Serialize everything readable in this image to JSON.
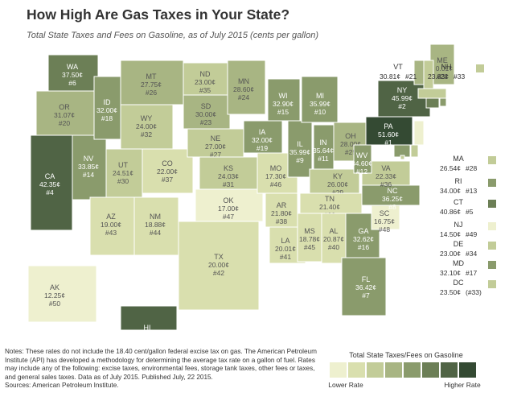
{
  "title": "How High Are Gas Taxes in Your State?",
  "subtitle": "Total State Taxes and Fees on Gasoline, as of July 2015 (cents per gallon)",
  "states": [
    {
      "abbr": "WA",
      "tax": 37.5,
      "tax_label": "37.50¢",
      "rank": "#6"
    },
    {
      "abbr": "OR",
      "tax": 31.07,
      "tax_label": "31.07¢",
      "rank": "#20"
    },
    {
      "abbr": "CA",
      "tax": 42.35,
      "tax_label": "42.35¢",
      "rank": "#4"
    },
    {
      "abbr": "NV",
      "tax": 33.85,
      "tax_label": "33.85¢",
      "rank": "#14"
    },
    {
      "abbr": "ID",
      "tax": 32.0,
      "tax_label": "32.00¢",
      "rank": "#18"
    },
    {
      "abbr": "MT",
      "tax": 27.75,
      "tax_label": "27.75¢",
      "rank": "#26"
    },
    {
      "abbr": "WY",
      "tax": 24.0,
      "tax_label": "24.00¢",
      "rank": "#32"
    },
    {
      "abbr": "UT",
      "tax": 24.51,
      "tax_label": "24.51¢",
      "rank": "#30"
    },
    {
      "abbr": "AZ",
      "tax": 19.0,
      "tax_label": "19.00¢",
      "rank": "#43"
    },
    {
      "abbr": "CO",
      "tax": 22.0,
      "tax_label": "22.00¢",
      "rank": "#37"
    },
    {
      "abbr": "NM",
      "tax": 18.88,
      "tax_label": "18.88¢",
      "rank": "#44"
    },
    {
      "abbr": "ND",
      "tax": 23.0,
      "tax_label": "23.00¢",
      "rank": "#35"
    },
    {
      "abbr": "SD",
      "tax": 30.0,
      "tax_label": "30.00¢",
      "rank": "#23"
    },
    {
      "abbr": "NE",
      "tax": 27.0,
      "tax_label": "27.00¢",
      "rank": "#27"
    },
    {
      "abbr": "KS",
      "tax": 24.03,
      "tax_label": "24.03¢",
      "rank": "#31"
    },
    {
      "abbr": "OK",
      "tax": 17.0,
      "tax_label": "17.00¢",
      "rank": "#47"
    },
    {
      "abbr": "TX",
      "tax": 20.0,
      "tax_label": "20.00¢",
      "rank": "#42"
    },
    {
      "abbr": "MN",
      "tax": 28.6,
      "tax_label": "28.60¢",
      "rank": "#24"
    },
    {
      "abbr": "IA",
      "tax": 32.0,
      "tax_label": "32.00¢",
      "rank": "#19"
    },
    {
      "abbr": "MO",
      "tax": 17.3,
      "tax_label": "17.30¢",
      "rank": "#46"
    },
    {
      "abbr": "AR",
      "tax": 21.8,
      "tax_label": "21.80¢",
      "rank": "#38"
    },
    {
      "abbr": "LA",
      "tax": 20.01,
      "tax_label": "20.01¢",
      "rank": "#41"
    },
    {
      "abbr": "WI",
      "tax": 32.9,
      "tax_label": "32.90¢",
      "rank": "#15"
    },
    {
      "abbr": "IL",
      "tax": 35.99,
      "tax_label": "35.99¢",
      "rank": "#9"
    },
    {
      "abbr": "MI",
      "tax": 35.99,
      "tax_label": "35.99¢",
      "rank": "#10"
    },
    {
      "abbr": "IN",
      "tax": 35.64,
      "tax_label": "35.64¢",
      "rank": "#11"
    },
    {
      "abbr": "OH",
      "tax": 28.0,
      "tax_label": "28.00¢",
      "rank": "#25"
    },
    {
      "abbr": "KY",
      "tax": 26.0,
      "tax_label": "26.00¢",
      "rank": "#29"
    },
    {
      "abbr": "TN",
      "tax": 21.4,
      "tax_label": "21.40¢",
      "rank": "#39"
    },
    {
      "abbr": "MS",
      "tax": 18.78,
      "tax_label": "18.78¢",
      "rank": "#45"
    },
    {
      "abbr": "AL",
      "tax": 20.87,
      "tax_label": "20.87¢",
      "rank": "#40"
    },
    {
      "abbr": "GA",
      "tax": 32.62,
      "tax_label": "32.62¢",
      "rank": "#16"
    },
    {
      "abbr": "FL",
      "tax": 36.42,
      "tax_label": "36.42¢",
      "rank": "#7"
    },
    {
      "abbr": "SC",
      "tax": 16.75,
      "tax_label": "16.75¢",
      "rank": "#48"
    },
    {
      "abbr": "NC",
      "tax": 36.25,
      "tax_label": "36.25¢",
      "rank": "#8"
    },
    {
      "abbr": "VA",
      "tax": 22.33,
      "tax_label": "22.33¢",
      "rank": "#36"
    },
    {
      "abbr": "WV",
      "tax": 34.6,
      "tax_label": "34.60¢",
      "rank": "#12"
    },
    {
      "abbr": "PA",
      "tax": 51.6,
      "tax_label": "51.60¢",
      "rank": "#1"
    },
    {
      "abbr": "NY",
      "tax": 45.99,
      "tax_label": "45.99¢",
      "rank": "#2"
    },
    {
      "abbr": "ME",
      "tax": 30.01,
      "tax_label": "30.01¢",
      "rank": "#22"
    },
    {
      "abbr": "VT",
      "tax": 30.81,
      "tax_label": "30.81¢",
      "rank": "#21"
    },
    {
      "abbr": "NH",
      "tax": 23.83,
      "tax_label": "23.83¢",
      "rank": "#33"
    },
    {
      "abbr": "MA",
      "tax": 26.54,
      "tax_label": "26.54¢",
      "rank": "#28"
    },
    {
      "abbr": "RI",
      "tax": 34.0,
      "tax_label": "34.00¢",
      "rank": "#13"
    },
    {
      "abbr": "CT",
      "tax": 40.86,
      "tax_label": "40.86¢",
      "rank": "#5"
    },
    {
      "abbr": "NJ",
      "tax": 14.5,
      "tax_label": "14.50¢",
      "rank": "#49"
    },
    {
      "abbr": "DE",
      "tax": 23.0,
      "tax_label": "23.00¢",
      "rank": "#34"
    },
    {
      "abbr": "MD",
      "tax": 32.1,
      "tax_label": "32.10¢",
      "rank": "#17"
    },
    {
      "abbr": "DC",
      "tax": 23.5,
      "tax_label": "23.50¢",
      "rank": "(#33)"
    },
    {
      "abbr": "AK",
      "tax": 12.25,
      "tax_label": "12.25¢",
      "rank": "#50"
    },
    {
      "abbr": "HI",
      "tax": 45.1,
      "tax_label": "45.10¢",
      "rank": "#3"
    }
  ],
  "legend": {
    "title": "Total State Taxes/Fees on Gasoline",
    "colors": [
      "#eef0cf",
      "#d9dfae",
      "#c2cc98",
      "#a8b583",
      "#8a9b6c",
      "#6c7f56",
      "#506445",
      "#344a33"
    ],
    "low": "Lower Rate",
    "high": "Higher Rate"
  },
  "notes": "Notes: These rates do not include the 18.40 cent/gallon federal excise tax on gas. The American Petroleum Institute (API) has developed a methodology for determining the average tax rate on a gallon of fuel. Rates may include any of the following: excise taxes, environmental fees, storage tank taxes, other fees or taxes, and general sales taxes. Data as of July 2015. Published July, 22 2015.",
  "sources": "Sources: American Petroleum Institute."
}
